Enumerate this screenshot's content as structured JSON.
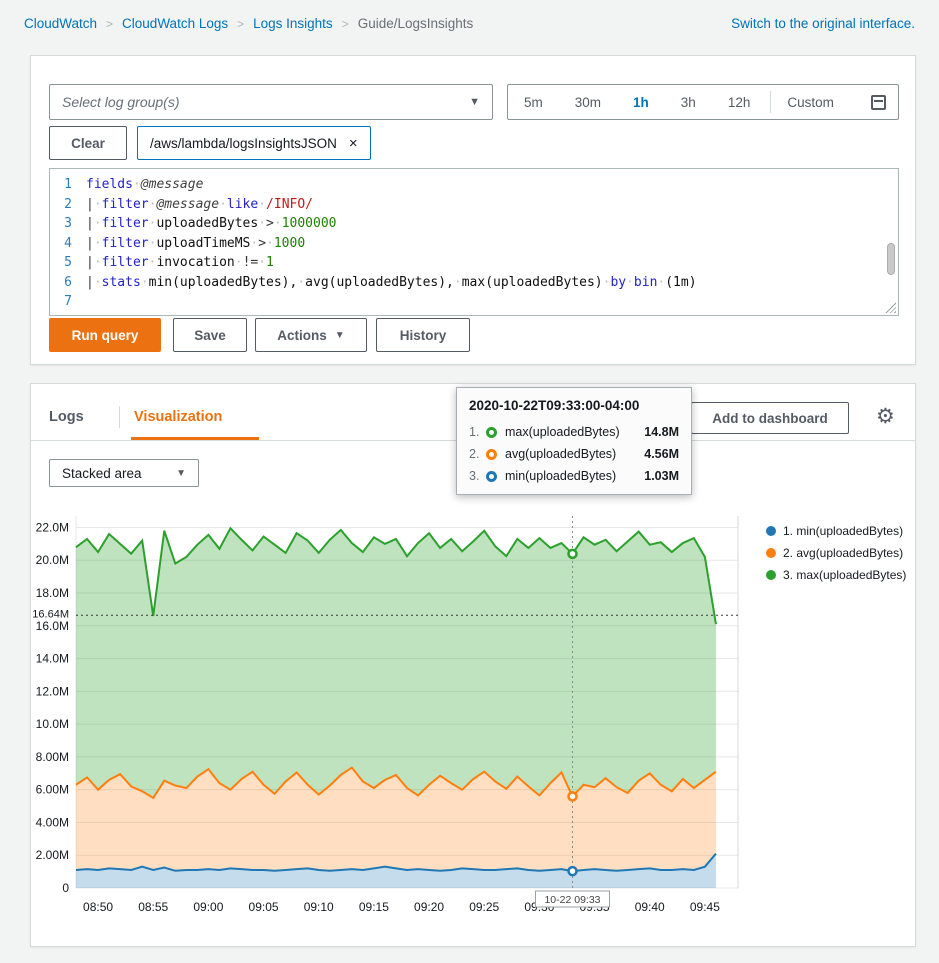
{
  "icons": {
    "caret_down": "▼",
    "close": "×",
    "gear": "⚙"
  },
  "breadcrumb": {
    "items": [
      "CloudWatch",
      "CloudWatch Logs",
      "Logs Insights",
      "Guide/LogsInsights"
    ],
    "switch_link": "Switch to the original interface."
  },
  "query_panel": {
    "log_group_placeholder": "Select log group(s)",
    "time_ranges": [
      "5m",
      "30m",
      "1h",
      "3h",
      "12h"
    ],
    "time_selected": "1h",
    "custom_label": "Custom",
    "clear_label": "Clear",
    "log_group_tag": "/aws/lambda/logsInsightsJSON",
    "buttons": {
      "run": "Run query",
      "save": "Save",
      "actions": "Actions",
      "history": "History"
    },
    "editor_lines": [
      [
        {
          "t": "fields",
          "c": "kw"
        },
        {
          "t": "·",
          "c": "dot"
        },
        {
          "t": "@message",
          "c": "var"
        }
      ],
      [
        {
          "t": "|",
          "c": "op"
        },
        {
          "t": "·",
          "c": "dot"
        },
        {
          "t": "filter",
          "c": "kw"
        },
        {
          "t": "·",
          "c": "dot"
        },
        {
          "t": "@message",
          "c": "var"
        },
        {
          "t": "·",
          "c": "dot"
        },
        {
          "t": "like",
          "c": "kw"
        },
        {
          "t": "·",
          "c": "dot"
        },
        {
          "t": "/INFO/",
          "c": "re"
        }
      ],
      [
        {
          "t": "|",
          "c": "op"
        },
        {
          "t": "·",
          "c": "dot"
        },
        {
          "t": "filter",
          "c": "kw"
        },
        {
          "t": "·",
          "c": "dot"
        },
        {
          "t": "uploadedBytes",
          "c": "id"
        },
        {
          "t": "·",
          "c": "dot"
        },
        {
          "t": ">",
          "c": "op"
        },
        {
          "t": "·",
          "c": "dot"
        },
        {
          "t": "1000000",
          "c": "num"
        }
      ],
      [
        {
          "t": "|",
          "c": "op"
        },
        {
          "t": "·",
          "c": "dot"
        },
        {
          "t": "filter",
          "c": "kw"
        },
        {
          "t": "·",
          "c": "dot"
        },
        {
          "t": "uploadTimeMS",
          "c": "id"
        },
        {
          "t": "·",
          "c": "dot"
        },
        {
          "t": ">",
          "c": "op"
        },
        {
          "t": "·",
          "c": "dot"
        },
        {
          "t": "1000",
          "c": "num"
        }
      ],
      [
        {
          "t": "|",
          "c": "op"
        },
        {
          "t": "·",
          "c": "dot"
        },
        {
          "t": "filter",
          "c": "kw"
        },
        {
          "t": "·",
          "c": "dot"
        },
        {
          "t": "invocation",
          "c": "id"
        },
        {
          "t": "·",
          "c": "dot"
        },
        {
          "t": "!=",
          "c": "op"
        },
        {
          "t": "·",
          "c": "dot"
        },
        {
          "t": "1",
          "c": "num"
        }
      ],
      [
        {
          "t": "|",
          "c": "op"
        },
        {
          "t": "·",
          "c": "dot"
        },
        {
          "t": "stats",
          "c": "kw"
        },
        {
          "t": "·",
          "c": "dot"
        },
        {
          "t": "min(uploadedBytes),",
          "c": "id"
        },
        {
          "t": "·",
          "c": "dot"
        },
        {
          "t": "avg(uploadedBytes),",
          "c": "id"
        },
        {
          "t": "·",
          "c": "dot"
        },
        {
          "t": "max(uploadedBytes)",
          "c": "id"
        },
        {
          "t": "·",
          "c": "dot"
        },
        {
          "t": "by",
          "c": "kw"
        },
        {
          "t": "·",
          "c": "dot"
        },
        {
          "t": "bin",
          "c": "kw"
        },
        {
          "t": "·",
          "c": "dot"
        },
        {
          "t": "(1m)",
          "c": "id"
        }
      ],
      []
    ]
  },
  "viz_panel": {
    "tabs": [
      {
        "label": "Logs",
        "active": false
      },
      {
        "label": "Visualization",
        "active": true
      }
    ],
    "add_to_dashboard": "Add to dashboard",
    "chart_type": "Stacked area",
    "tooltip": {
      "title": "2020-10-22T09:33:00-04:00",
      "rows": [
        {
          "index": "1.",
          "label": "max(uploadedBytes)",
          "value": "14.8M",
          "color": "#2ca02c"
        },
        {
          "index": "2.",
          "label": "avg(uploadedBytes)",
          "value": "4.56M",
          "color": "#ff7f0e"
        },
        {
          "index": "3.",
          "label": "min(uploadedBytes)",
          "value": "1.03M",
          "color": "#1f77b4"
        }
      ]
    },
    "legend": [
      {
        "label": "1. min(uploadedBytes)",
        "color": "#1f77b4"
      },
      {
        "label": "2. avg(uploadedBytes)",
        "color": "#ff7f0e"
      },
      {
        "label": "3. max(uploadedBytes)",
        "color": "#2ca02c"
      }
    ]
  },
  "chart_data": {
    "type": "area",
    "stacked": true,
    "title": "",
    "unit": "MBytes (M)",
    "ylim": [
      0,
      22.7
    ],
    "x_domain_minutes": 60,
    "x_start": "08:48",
    "series": [
      {
        "name": "min(uploadedBytes)",
        "color": "#1f77b4",
        "values": [
          1.1,
          1.15,
          1.1,
          1.2,
          1.15,
          1.1,
          1.3,
          1.1,
          1.25,
          1.05,
          1.1,
          1.1,
          1.15,
          1.1,
          1.2,
          1.15,
          1.1,
          1.1,
          1.05,
          1.1,
          1.15,
          1.2,
          1.1,
          1.05,
          1.1,
          1.15,
          1.1,
          1.2,
          1.3,
          1.2,
          1.1,
          1.15,
          1.1,
          1.05,
          1.1,
          1.2,
          1.15,
          1.1,
          1.1,
          1.15,
          1.2,
          1.1,
          1.05,
          1.1,
          1.15,
          1.03,
          1.1,
          1.15,
          1.1,
          1.05,
          1.1,
          1.15,
          1.2,
          1.1,
          1.1,
          1.15,
          1.1,
          1.3,
          2.1
        ]
      },
      {
        "name": "avg(uploadedBytes)",
        "color": "#ff7f0e",
        "values": [
          5.2,
          5.6,
          4.9,
          5.4,
          5.8,
          5.1,
          4.6,
          4.4,
          5.3,
          5.2,
          5.0,
          5.7,
          6.1,
          5.3,
          4.8,
          5.5,
          6.0,
          5.2,
          4.7,
          5.4,
          5.9,
          5.1,
          4.6,
          5.2,
          5.8,
          6.2,
          5.4,
          4.9,
          5.3,
          5.7,
          5.0,
          4.5,
          5.2,
          5.8,
          5.3,
          4.8,
          5.5,
          6.0,
          5.4,
          4.9,
          5.6,
          5.1,
          4.6,
          5.3,
          5.9,
          4.56,
          5.2,
          5.0,
          5.6,
          5.1,
          4.7,
          5.4,
          5.8,
          5.2,
          4.8,
          5.5,
          5.0,
          5.3,
          5.0
        ]
      },
      {
        "name": "max(uploadedBytes)",
        "color": "#2ca02c",
        "values": [
          14.5,
          14.55,
          14.5,
          15.0,
          14.05,
          14.2,
          15.3,
          11.1,
          15.25,
          13.55,
          14.1,
          14.15,
          14.3,
          14.3,
          15.95,
          14.6,
          13.5,
          15.15,
          15.2,
          13.95,
          14.6,
          14.9,
          14.75,
          15.0,
          14.95,
          13.7,
          14.0,
          15.3,
          14.4,
          14.4,
          14.15,
          15.4,
          15.35,
          13.9,
          14.9,
          14.55,
          14.5,
          14.7,
          14.35,
          14.2,
          14.5,
          14.55,
          15.7,
          14.35,
          14.0,
          14.8,
          15.1,
          14.8,
          14.55,
          14.4,
          15.35,
          15.2,
          13.95,
          14.8,
          14.6,
          14.4,
          15.25,
          13.6,
          9.0
        ]
      }
    ],
    "y_ticks": [
      {
        "v": 0,
        "label": "0"
      },
      {
        "v": 2,
        "label": "2.00M"
      },
      {
        "v": 4,
        "label": "4.00M"
      },
      {
        "v": 6,
        "label": "6.00M"
      },
      {
        "v": 8,
        "label": "8.00M"
      },
      {
        "v": 10,
        "label": "10.0M"
      },
      {
        "v": 12,
        "label": "12.0M"
      },
      {
        "v": 14,
        "label": "14.0M"
      },
      {
        "v": 16,
        "label": "16.0M"
      },
      {
        "v": 18,
        "label": "18.0M"
      },
      {
        "v": 20,
        "label": "20.0M"
      },
      {
        "v": 22,
        "label": "22.0M"
      }
    ],
    "y_annotation": {
      "v": 16.64,
      "label": "16.64M"
    },
    "x_ticks": [
      {
        "m": 2,
        "label": "08:50"
      },
      {
        "m": 7,
        "label": "08:55"
      },
      {
        "m": 12,
        "label": "09:00"
      },
      {
        "m": 17,
        "label": "09:05"
      },
      {
        "m": 22,
        "label": "09:10"
      },
      {
        "m": 27,
        "label": "09:15"
      },
      {
        "m": 32,
        "label": "09:20"
      },
      {
        "m": 37,
        "label": "09:25"
      },
      {
        "m": 42,
        "label": "09:30"
      },
      {
        "m": 47,
        "label": "09:35"
      },
      {
        "m": 52,
        "label": "09:40"
      },
      {
        "m": 57,
        "label": "09:45"
      }
    ],
    "cursor": {
      "m": 45,
      "label": "10-22 09:33",
      "points": [
        {
          "v": 20.39,
          "color": "#2ca02c"
        },
        {
          "v": 5.59,
          "color": "#ff7f0e"
        },
        {
          "v": 1.03,
          "color": "#1f77b4"
        }
      ]
    }
  }
}
